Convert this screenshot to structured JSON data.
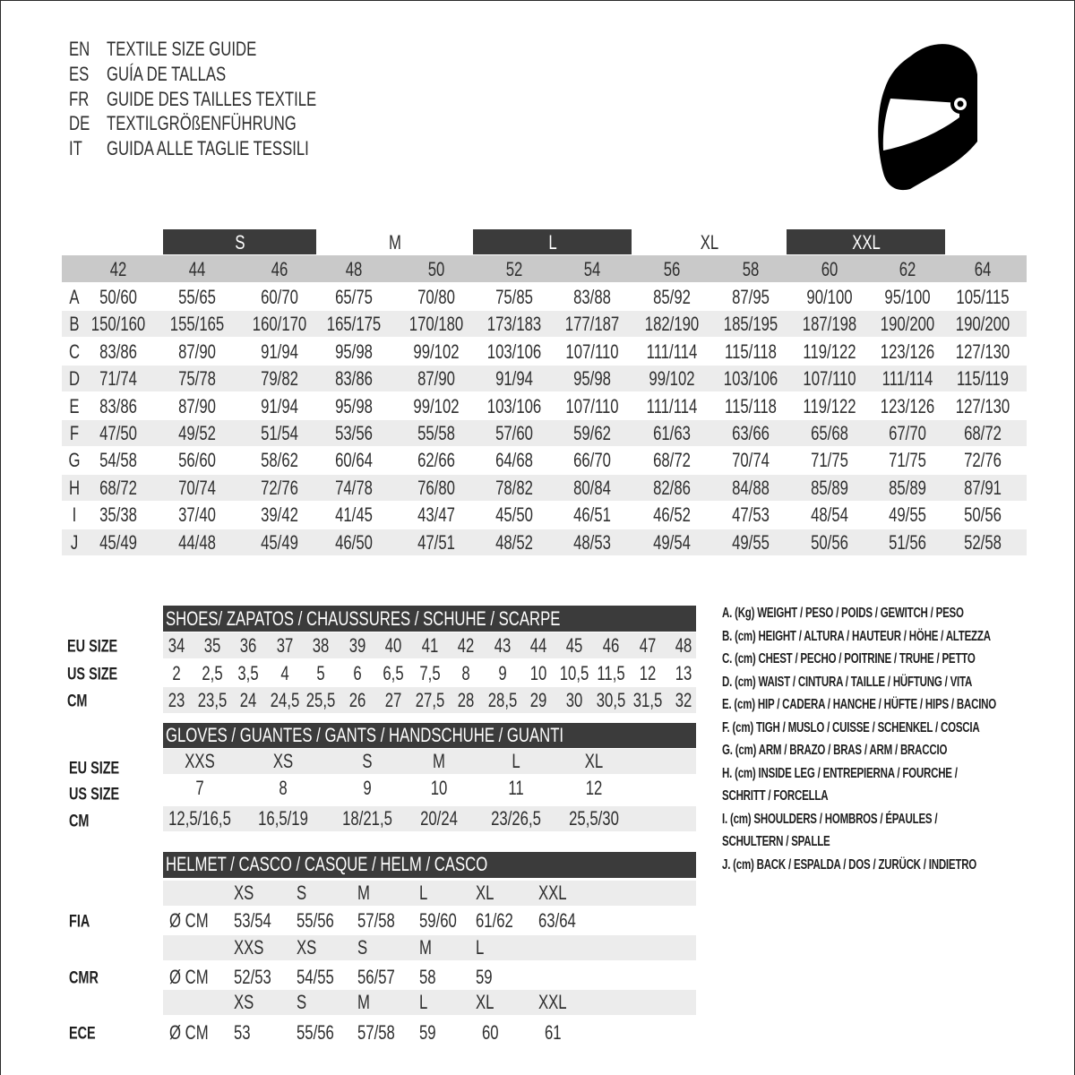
{
  "title_lines": [
    {
      "code": "EN",
      "text": "TEXTILE SIZE GUIDE"
    },
    {
      "code": "ES",
      "text": "GUÍA DE TALLAS"
    },
    {
      "code": "FR",
      "text": "GUIDE DES TAILLES TEXTILE"
    },
    {
      "code": "DE",
      "text": "TEXTILGRÖßENFÜHRUNG"
    },
    {
      "code": "IT",
      "text": "GUIDA ALLE TAGLIE TESSILI"
    }
  ],
  "icon": "helmet-icon",
  "colors": {
    "dark_band": "#3b3b3b",
    "header_band": "#c9c9c9",
    "alt_row": "#ececec"
  },
  "textile": {
    "size_groups": [
      {
        "label": "S",
        "dark": true
      },
      {
        "label": "M",
        "dark": false
      },
      {
        "label": "L",
        "dark": true
      },
      {
        "label": "XL",
        "dark": false
      },
      {
        "label": "XXL",
        "dark": true
      }
    ],
    "eu_sizes": [
      "42",
      "44",
      "46",
      "48",
      "50",
      "52",
      "54",
      "56",
      "58",
      "60",
      "62",
      "64"
    ],
    "rows": [
      {
        "letter": "A",
        "values": [
          "50/60",
          "55/65",
          "60/70",
          "65/75",
          "70/80",
          "75/85",
          "83/88",
          "85/92",
          "87/95",
          "90/100",
          "95/100",
          "105/115"
        ]
      },
      {
        "letter": "B",
        "values": [
          "150/160",
          "155/165",
          "160/170",
          "165/175",
          "170/180",
          "173/183",
          "177/187",
          "182/190",
          "185/195",
          "187/198",
          "190/200",
          "190/200"
        ]
      },
      {
        "letter": "C",
        "values": [
          "83/86",
          "87/90",
          "91/94",
          "95/98",
          "99/102",
          "103/106",
          "107/110",
          "111/114",
          "115/118",
          "119/122",
          "123/126",
          "127/130"
        ]
      },
      {
        "letter": "D",
        "values": [
          "71/74",
          "75/78",
          "79/82",
          "83/86",
          "87/90",
          "91/94",
          "95/98",
          "99/102",
          "103/106",
          "107/110",
          "111/114",
          "115/119"
        ]
      },
      {
        "letter": "E",
        "values": [
          "83/86",
          "87/90",
          "91/94",
          "95/98",
          "99/102",
          "103/106",
          "107/110",
          "111/114",
          "115/118",
          "119/122",
          "123/126",
          "127/130"
        ]
      },
      {
        "letter": "F",
        "values": [
          "47/50",
          "49/52",
          "51/54",
          "53/56",
          "55/58",
          "57/60",
          "59/62",
          "61/63",
          "63/66",
          "65/68",
          "67/70",
          "68/72"
        ]
      },
      {
        "letter": "G",
        "values": [
          "54/58",
          "56/60",
          "58/62",
          "60/64",
          "62/66",
          "64/68",
          "66/70",
          "68/72",
          "70/74",
          "71/75",
          "71/75",
          "72/76"
        ]
      },
      {
        "letter": "H",
        "values": [
          "68/72",
          "70/74",
          "72/76",
          "74/78",
          "76/80",
          "78/82",
          "80/84",
          "82/86",
          "84/88",
          "85/89",
          "85/89",
          "87/91"
        ]
      },
      {
        "letter": "I",
        "values": [
          "35/38",
          "37/40",
          "39/42",
          "41/45",
          "43/47",
          "45/50",
          "46/51",
          "46/52",
          "47/53",
          "48/54",
          "49/55",
          "50/56"
        ]
      },
      {
        "letter": "J",
        "values": [
          "45/49",
          "44/48",
          "45/49",
          "46/50",
          "47/51",
          "48/52",
          "48/53",
          "49/54",
          "49/55",
          "50/56",
          "51/56",
          "52/58"
        ]
      }
    ]
  },
  "shoes": {
    "title": "SHOES/ ZAPATOS / CHAUSSURES / SCHUHE / SCARPE",
    "rows": [
      {
        "label": "EU SIZE",
        "values": [
          "34",
          "35",
          "36",
          "37",
          "38",
          "39",
          "40",
          "41",
          "42",
          "43",
          "44",
          "45",
          "46",
          "47",
          "48"
        ]
      },
      {
        "label": "US SIZE",
        "values": [
          "2",
          "2,5",
          "3,5",
          "4",
          "5",
          "6",
          "6,5",
          "7,5",
          "8",
          "9",
          "10",
          "10,5",
          "11,5",
          "12",
          "13"
        ]
      },
      {
        "label": "CM",
        "values": [
          "23",
          "23,5",
          "24",
          "24,5",
          "25,5",
          "26",
          "27",
          "27,5",
          "28",
          "28,5",
          "29",
          "30",
          "30,5",
          "31,5",
          "32"
        ]
      }
    ]
  },
  "gloves": {
    "title": "GLOVES / GUANTES / GANTS / HANDSCHUHE / GUANTI",
    "rows": [
      {
        "label": "EU SIZE",
        "values": [
          "XXS",
          "XS",
          "S",
          "M",
          "L",
          "XL"
        ]
      },
      {
        "label": "US SIZE",
        "values": [
          "7",
          "8",
          "9",
          "10",
          "11",
          "12"
        ]
      },
      {
        "label": "CM",
        "values": [
          "12,5/16,5",
          "16,5/19",
          "18/21,5",
          "20/24",
          "23/26,5",
          "25,5/30"
        ]
      }
    ]
  },
  "helmet": {
    "title": "HELMET / CASCO / CASQUE / HELM / CASCO",
    "standards": [
      {
        "label": "FIA",
        "unit": "Ø CM",
        "sizes": [
          "XS",
          "S",
          "M",
          "L",
          "XL",
          "XXL"
        ],
        "values": [
          "53/54",
          "55/56",
          "57/58",
          "59/60",
          "61/62",
          "63/64"
        ]
      },
      {
        "label": "CMR",
        "unit": "Ø CM",
        "sizes": [
          "XXS",
          "XS",
          "S",
          "M",
          "L"
        ],
        "values": [
          "52/53",
          "54/55",
          "56/57",
          "58",
          "59"
        ]
      },
      {
        "label": "ECE",
        "unit": "Ø CM",
        "sizes": [
          "XS",
          "S",
          "M",
          "L",
          "XL",
          "XXL"
        ],
        "values": [
          "53",
          "55/56",
          "57/58",
          "59",
          "60",
          "61"
        ]
      }
    ]
  },
  "legend": [
    "A. (Kg) WEIGHT / PESO / POIDS / GEWITCH / PESO",
    "B. (cm) HEIGHT / ALTURA / HAUTEUR / HÖHE / ALTEZZA",
    "C. (cm) CHEST / PECHO / POITRINE / TRUHE / PETTO",
    "D. (cm) WAIST / CINTURA / TAILLE / HÜFTUNG / VITA",
    "E. (cm) HIP / CADERA / HANCHE / HÜFTE / HIPS /  BACINO",
    "F.  (cm) TIGH / MUSLO / CUISSE / SCHENKEL / COSCIA",
    "G. (cm) ARM  / BRAZO / BRAS / ARM / BRACCIO",
    "H. (cm) INSIDE LEG / ENTREPIERNA / FOURCHE /",
    "SCHRITT / FORCELLA",
    "I.  (cm) SHOULDERS / HOMBROS / ÉPAULES /",
    "SCHULTERN / SPALLE",
    "J. (cm) BACK / ESPALDA / DOS / ZURÜCK / INDIETRO"
  ]
}
